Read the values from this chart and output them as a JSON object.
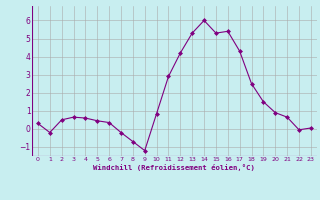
{
  "x": [
    0,
    1,
    2,
    3,
    4,
    5,
    6,
    7,
    8,
    9,
    10,
    11,
    12,
    13,
    14,
    15,
    16,
    17,
    18,
    19,
    20,
    21,
    22,
    23
  ],
  "y": [
    0.3,
    -0.2,
    0.5,
    0.65,
    0.6,
    0.45,
    0.35,
    -0.2,
    -0.7,
    -1.2,
    0.85,
    2.9,
    4.2,
    5.3,
    6.0,
    5.3,
    5.4,
    4.3,
    2.5,
    1.5,
    0.9,
    0.65,
    -0.05,
    0.05
  ],
  "line_color": "#800080",
  "marker": "D",
  "marker_size": 2,
  "bg_color": "#c8eef0",
  "grid_color": "#aaaaaa",
  "xlabel": "Windchill (Refroidissement éolien,°C)",
  "xlabel_color": "#800080",
  "tick_color": "#800080",
  "ylim": [
    -1.5,
    6.8
  ],
  "xlim": [
    -0.5,
    23.5
  ],
  "yticks": [
    -1,
    0,
    1,
    2,
    3,
    4,
    5,
    6
  ],
  "xticks": [
    0,
    1,
    2,
    3,
    4,
    5,
    6,
    7,
    8,
    9,
    10,
    11,
    12,
    13,
    14,
    15,
    16,
    17,
    18,
    19,
    20,
    21,
    22,
    23
  ]
}
